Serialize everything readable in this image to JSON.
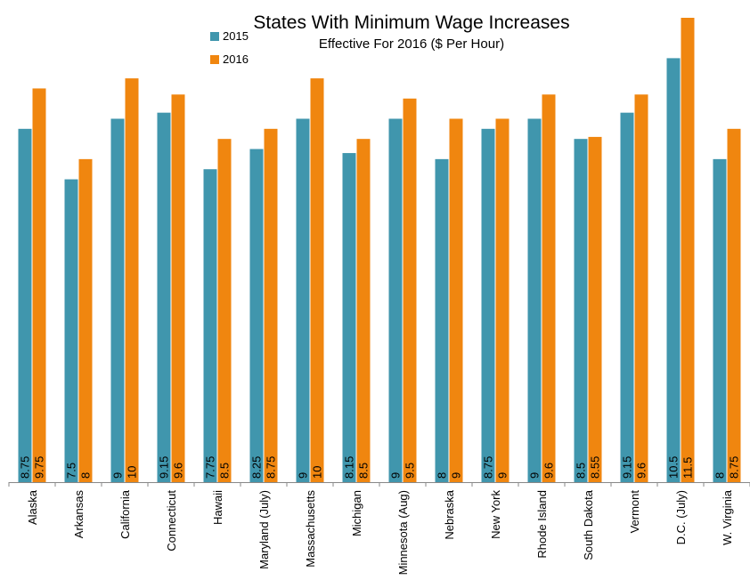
{
  "chart_data": {
    "type": "bar",
    "title": "States With Minimum Wage Increases",
    "subtitle": "Effective For 2016 ($ Per Hour)",
    "xlabel": "",
    "ylabel": "",
    "ylim": [
      0,
      11.5
    ],
    "grid": false,
    "legend_position": "top-left",
    "categories": [
      "Alaska",
      "Arkansas",
      "California",
      "Connecticut",
      "Hawaii",
      "Maryland (July)",
      "Massachusetts",
      "Michigan",
      "Minnesota (Aug)",
      "Nebraska",
      "New York",
      "Rhode Island",
      "South Dakota",
      "Vermont",
      "D.C. (July)",
      "W. Virginia"
    ],
    "series": [
      {
        "name": "2015",
        "color": "#4096ad",
        "values": [
          8.75,
          7.5,
          9,
          9.15,
          7.75,
          8.25,
          9,
          8.15,
          9,
          8,
          8.75,
          9,
          8.5,
          9.15,
          10.5,
          8
        ]
      },
      {
        "name": "2016",
        "color": "#f0860f",
        "values": [
          9.75,
          8,
          10,
          9.6,
          8.5,
          8.75,
          10,
          8.5,
          9.5,
          9,
          9,
          9.6,
          8.55,
          9.6,
          11.5,
          8.75
        ]
      }
    ]
  }
}
